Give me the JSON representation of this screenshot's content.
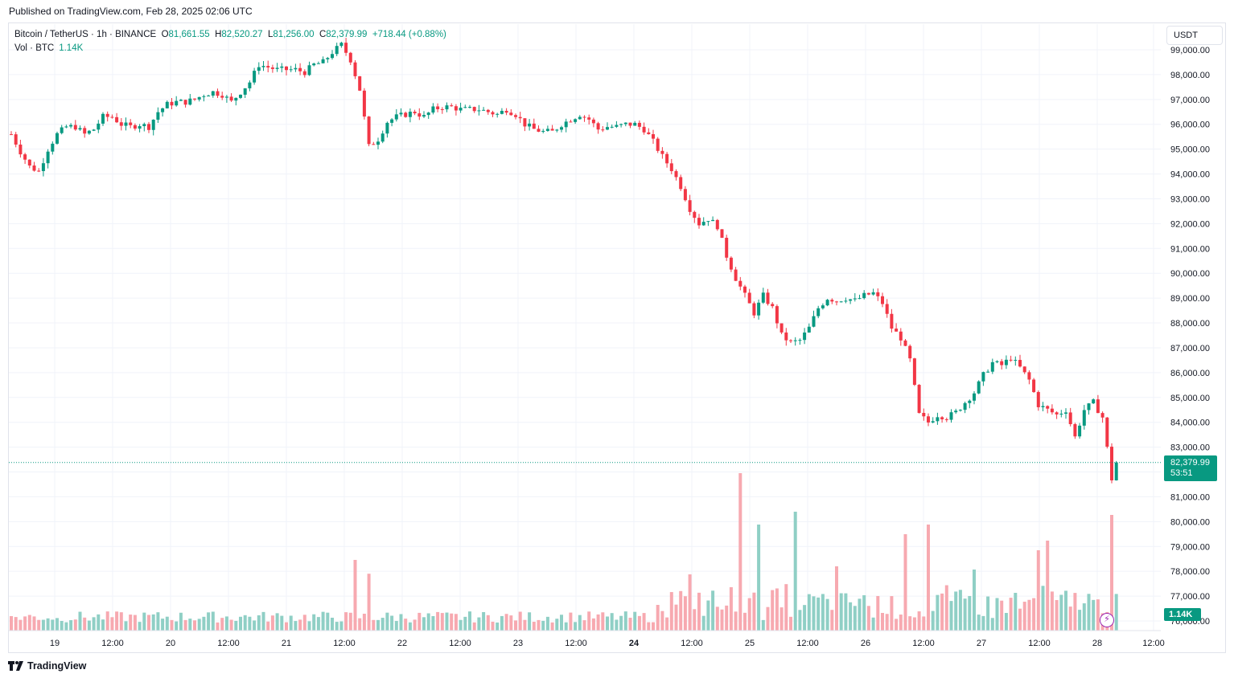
{
  "header": {
    "published": "Published on TradingView.com, Feb 28, 2025 02:06 UTC"
  },
  "legend": {
    "symbol": "Bitcoin / TetherUS · 1h · BINANCE",
    "open_label": "O",
    "open": "81,661.55",
    "high_label": "H",
    "high": "82,520.27",
    "low_label": "L",
    "low": "81,256.00",
    "close_label": "C",
    "close": "82,379.99",
    "change": "+718.44 (+0.88%)",
    "volume_label": "Vol · BTC",
    "volume": "1.14K"
  },
  "currency_button": "USDT",
  "last_price": {
    "price": "82,379.99",
    "countdown": "53:51"
  },
  "volume_tag": "1.14K",
  "footer": {
    "brand": "TradingView"
  },
  "colors": {
    "up": "#089981",
    "down": "#f23645",
    "up_vol": "#8fcfc5",
    "down_vol": "#f7a9b0",
    "grid": "#f0f3fa"
  },
  "chart_data": {
    "type": "candlestick",
    "symbol": "BTCUSDT",
    "interval": "1h",
    "y_axis": {
      "ylim": [
        75700,
        99400
      ],
      "ticks": [
        "99,000.00",
        "98,000.00",
        "97,000.00",
        "96,000.00",
        "95,000.00",
        "94,000.00",
        "93,000.00",
        "92,000.00",
        "91,000.00",
        "90,000.00",
        "89,000.00",
        "88,000.00",
        "87,000.00",
        "86,000.00",
        "85,000.00",
        "84,000.00",
        "83,000.00",
        "82,000.00",
        "81,000.00",
        "80,000.00",
        "79,000.00",
        "78,000.00",
        "77,000.00",
        "76,000.00"
      ]
    },
    "x_axis": {
      "ticks": [
        "19",
        "12:00",
        "20",
        "12:00",
        "21",
        "12:00",
        "22",
        "12:00",
        "23",
        "12:00",
        "24",
        "12:00",
        "25",
        "12:00",
        "26",
        "12:00",
        "27",
        "12:00",
        "28",
        "12:00"
      ]
    },
    "last_close": 82379.99,
    "close_path": [
      [
        0,
        95600
      ],
      [
        2,
        94900
      ],
      [
        4,
        94300
      ],
      [
        6,
        94100
      ],
      [
        8,
        95000
      ],
      [
        10,
        95600
      ],
      [
        12,
        95900
      ],
      [
        14,
        95900
      ],
      [
        16,
        95600
      ],
      [
        18,
        95800
      ],
      [
        20,
        96300
      ],
      [
        22,
        96300
      ],
      [
        24,
        96000
      ],
      [
        26,
        95900
      ],
      [
        28,
        96000
      ],
      [
        30,
        95900
      ],
      [
        32,
        96500
      ],
      [
        34,
        96800
      ],
      [
        36,
        96900
      ],
      [
        38,
        96900
      ],
      [
        40,
        97000
      ],
      [
        42,
        97200
      ],
      [
        44,
        97300
      ],
      [
        46,
        97200
      ],
      [
        48,
        96900
      ],
      [
        50,
        97300
      ],
      [
        52,
        97700
      ],
      [
        54,
        98400
      ],
      [
        56,
        98300
      ],
      [
        58,
        98200
      ],
      [
        60,
        98200
      ],
      [
        62,
        98200
      ],
      [
        64,
        98100
      ],
      [
        66,
        98400
      ],
      [
        68,
        98500
      ],
      [
        70,
        98900
      ],
      [
        72,
        99200
      ],
      [
        74,
        98600
      ],
      [
        76,
        97400
      ],
      [
        78,
        95100
      ],
      [
        80,
        95400
      ],
      [
        82,
        96100
      ],
      [
        84,
        96300
      ],
      [
        86,
        96400
      ],
      [
        88,
        96500
      ],
      [
        90,
        96300
      ],
      [
        92,
        96600
      ],
      [
        94,
        96700
      ],
      [
        96,
        96700
      ],
      [
        98,
        96600
      ],
      [
        100,
        96600
      ],
      [
        102,
        96600
      ],
      [
        104,
        96500
      ],
      [
        106,
        96400
      ],
      [
        108,
        96600
      ],
      [
        110,
        96400
      ],
      [
        112,
        96000
      ],
      [
        114,
        95800
      ],
      [
        116,
        95700
      ],
      [
        118,
        95700
      ],
      [
        120,
        96000
      ],
      [
        122,
        96200
      ],
      [
        124,
        96400
      ],
      [
        126,
        96200
      ],
      [
        128,
        95800
      ],
      [
        130,
        95900
      ],
      [
        132,
        95900
      ],
      [
        134,
        96000
      ],
      [
        136,
        96000
      ],
      [
        138,
        95800
      ],
      [
        140,
        95300
      ],
      [
        142,
        94700
      ],
      [
        144,
        94200
      ],
      [
        146,
        93500
      ],
      [
        148,
        92600
      ],
      [
        150,
        92000
      ],
      [
        152,
        92200
      ],
      [
        154,
        91900
      ],
      [
        156,
        90700
      ],
      [
        158,
        89800
      ],
      [
        160,
        89100
      ],
      [
        162,
        88400
      ],
      [
        164,
        89100
      ],
      [
        166,
        88600
      ],
      [
        168,
        87500
      ],
      [
        170,
        87200
      ],
      [
        172,
        87300
      ],
      [
        174,
        87800
      ],
      [
        176,
        88600
      ],
      [
        178,
        89000
      ],
      [
        180,
        88900
      ],
      [
        182,
        89000
      ],
      [
        184,
        88900
      ],
      [
        186,
        89100
      ],
      [
        188,
        89200
      ],
      [
        190,
        88800
      ],
      [
        192,
        87800
      ],
      [
        194,
        87400
      ],
      [
        196,
        86500
      ],
      [
        198,
        84300
      ],
      [
        200,
        84000
      ],
      [
        202,
        84300
      ],
      [
        204,
        84200
      ],
      [
        206,
        84400
      ],
      [
        208,
        84800
      ],
      [
        210,
        85200
      ],
      [
        212,
        85900
      ],
      [
        214,
        86400
      ],
      [
        216,
        86300
      ],
      [
        218,
        86600
      ],
      [
        220,
        86200
      ],
      [
        222,
        85700
      ],
      [
        224,
        84700
      ],
      [
        226,
        84500
      ],
      [
        228,
        84300
      ],
      [
        230,
        84500
      ],
      [
        232,
        83400
      ],
      [
        234,
        84500
      ],
      [
        236,
        84800
      ],
      [
        238,
        84200
      ],
      [
        240,
        81700
      ],
      [
        241,
        82380
      ]
    ],
    "volume_series": {
      "name": "Vol · BTC",
      "unit": "K BTC",
      "last": 1.14,
      "peaks": [
        [
          0,
          0.45
        ],
        [
          10,
          0.39
        ],
        [
          50,
          0.43
        ],
        [
          75,
          2.2
        ],
        [
          78,
          1.77
        ],
        [
          148,
          1.75
        ],
        [
          159,
          4.9
        ],
        [
          163,
          3.3
        ],
        [
          171,
          3.7
        ],
        [
          180,
          2.0
        ],
        [
          190,
          0.55
        ],
        [
          195,
          3.0
        ],
        [
          200,
          3.3
        ],
        [
          210,
          1.9
        ],
        [
          224,
          2.5
        ],
        [
          226,
          2.8
        ],
        [
          240,
          3.6
        ],
        [
          241,
          1.14
        ]
      ]
    }
  }
}
